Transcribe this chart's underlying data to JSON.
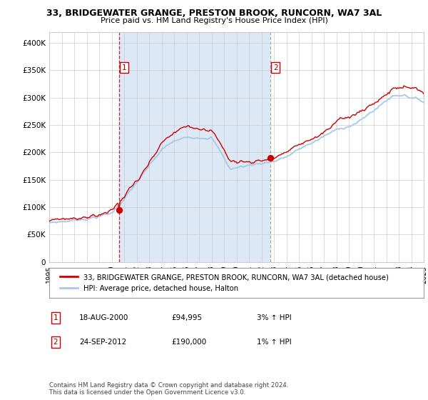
{
  "title": "33, BRIDGEWATER GRANGE, PRESTON BROOK, RUNCORN, WA7 3AL",
  "subtitle": "Price paid vs. HM Land Registry's House Price Index (HPI)",
  "legend_line1": "33, BRIDGEWATER GRANGE, PRESTON BROOK, RUNCORN, WA7 3AL (detached house)",
  "legend_line2": "HPI: Average price, detached house, Halton",
  "purchase1_date": "18-AUG-2000",
  "purchase1_price": 94995,
  "purchase1_label": "3% ↑ HPI",
  "purchase2_date": "24-SEP-2012",
  "purchase2_price": 190000,
  "purchase2_label": "1% ↑ HPI",
  "copyright_text": "Contains HM Land Registry data © Crown copyright and database right 2024.\nThis data is licensed under the Open Government Licence v3.0.",
  "hpi_color": "#a8c8e8",
  "price_color": "#cc0000",
  "dot_color": "#cc0000",
  "bg_color": "#ffffff",
  "plot_bg": "#dce8f5",
  "grid_color": "#cccccc",
  "ylim": [
    0,
    420000
  ],
  "start_year": 1995,
  "end_year": 2025,
  "purchase1_year": 2000.625,
  "purchase2_year": 2012.73,
  "yticks": [
    0,
    50000,
    100000,
    150000,
    200000,
    250000,
    300000,
    350000,
    400000
  ],
  "ytick_labels": [
    "0",
    "£50K",
    "£100K",
    "£150K",
    "£200K",
    "£250K",
    "£300K",
    "£350K",
    "£400K"
  ]
}
